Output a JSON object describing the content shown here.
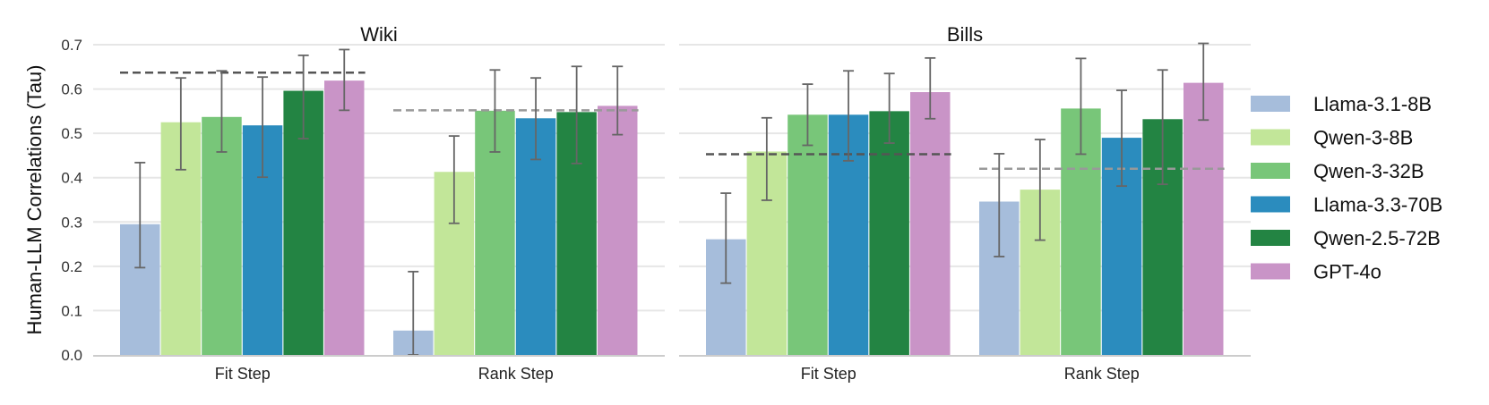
{
  "chart_data": {
    "type": "bar",
    "ylabel": "Human-LLM Correlations (Tau)",
    "ylim": [
      0,
      0.7
    ],
    "yticks": [
      0.0,
      0.1,
      0.2,
      0.3,
      0.4,
      0.5,
      0.6,
      0.7
    ],
    "ytick_labels": [
      "0.0",
      "0.1",
      "0.2",
      "0.3",
      "0.4",
      "0.5",
      "0.6",
      "0.7"
    ],
    "grid": "horizontal",
    "legend_position": "right",
    "series": [
      {
        "name": "Llama-3.1-8B",
        "color": "#a6bddb"
      },
      {
        "name": "Qwen-3-8B",
        "color": "#c2e699"
      },
      {
        "name": "Qwen-3-32B",
        "color": "#78c679"
      },
      {
        "name": "Llama-3.3-70B",
        "color": "#2b8cbe"
      },
      {
        "name": "Qwen-2.5-72B",
        "color": "#238443"
      },
      {
        "name": "GPT-4o",
        "color": "#c994c7"
      }
    ],
    "panels": [
      {
        "title": "Wiki",
        "categories": [
          "Fit Step",
          "Rank Step"
        ],
        "groups": [
          {
            "values": [
              0.295,
              0.525,
              0.537,
              0.518,
              0.596,
              0.619
            ],
            "err_low": [
              0.197,
              0.418,
              0.458,
              0.401,
              0.488,
              0.552
            ],
            "err_high": [
              0.434,
              0.625,
              0.641,
              0.627,
              0.676,
              0.689
            ],
            "reference": 0.637,
            "reference_style": "dark"
          },
          {
            "values": [
              0.055,
              0.413,
              0.551,
              0.534,
              0.548,
              0.562
            ],
            "err_low": [
              0.0,
              0.297,
              0.458,
              0.441,
              0.432,
              0.497
            ],
            "err_high": [
              0.188,
              0.494,
              0.643,
              0.625,
              0.651,
              0.651
            ],
            "reference": 0.552,
            "reference_style": "light"
          }
        ]
      },
      {
        "title": "Bills",
        "categories": [
          "Fit Step",
          "Rank Step"
        ],
        "groups": [
          {
            "values": [
              0.261,
              0.459,
              0.542,
              0.542,
              0.55,
              0.593
            ],
            "err_low": [
              0.162,
              0.349,
              0.473,
              0.438,
              0.478,
              0.533
            ],
            "err_high": [
              0.365,
              0.535,
              0.611,
              0.641,
              0.635,
              0.67
            ],
            "reference": 0.453,
            "reference_style": "dark"
          },
          {
            "values": [
              0.346,
              0.373,
              0.556,
              0.49,
              0.532,
              0.614
            ],
            "err_low": [
              0.222,
              0.259,
              0.453,
              0.381,
              0.385,
              0.53
            ],
            "err_high": [
              0.454,
              0.486,
              0.669,
              0.597,
              0.643,
              0.703
            ],
            "reference": 0.42,
            "reference_style": "light"
          }
        ]
      }
    ]
  }
}
